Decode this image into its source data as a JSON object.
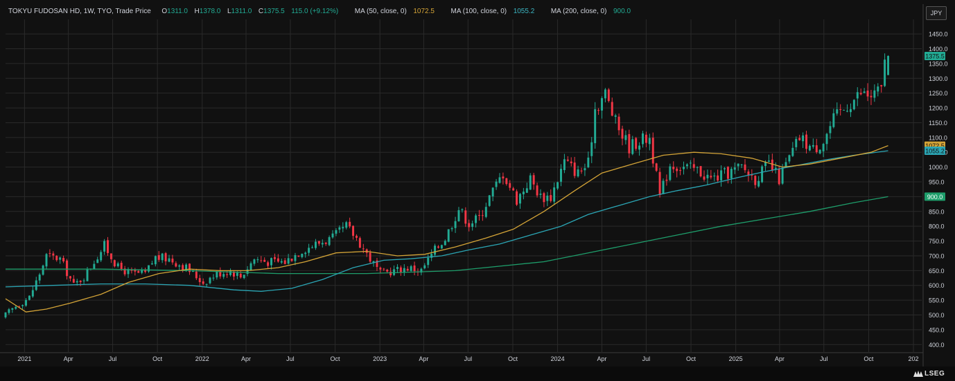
{
  "legend": {
    "title": "TOKYU FUDOSAN HD, 1W, TYO, Trade Price",
    "o_label": "O",
    "o_value": "1311.0",
    "h_label": "H",
    "h_value": "1378.0",
    "l_label": "L",
    "l_value": "1311.0",
    "c_label": "C",
    "c_value": "1375.5",
    "change": "115.0 (+9.12%)",
    "ma50_label": "MA (50, close, 0)",
    "ma50_value": "1072.5",
    "ma100_label": "MA (100, close, 0)",
    "ma100_value": "1055.2",
    "ma200_label": "MA (200, close, 0)",
    "ma200_value": "900.0"
  },
  "currency": "JPY",
  "brand": "LSEG",
  "colors": {
    "background": "#111111",
    "grid": "#2a2a2a",
    "up": "#22ab94",
    "down": "#f23645",
    "ma50": "#d4a437",
    "ma100": "#2ba6b5",
    "ma200": "#1e9e6b",
    "axis_text": "#d1d4dc"
  },
  "chart_data": {
    "type": "candlestick",
    "y_ticks": [
      400,
      450,
      500,
      550,
      600,
      650,
      700,
      750,
      800,
      850,
      900,
      950,
      1000,
      1050,
      1100,
      1150,
      1200,
      1250,
      1300,
      1350,
      1400,
      1450
    ],
    "y_tick_labels": [
      "400.0",
      "450.0",
      "500.0",
      "550.0",
      "600.0",
      "650.0",
      "700.0",
      "750.0",
      "800.0",
      "850.0",
      "900.0",
      "950.0",
      "1000.0",
      "1050.0",
      "1100.0",
      "1150.0",
      "1200.0",
      "1250.0",
      "1300.0",
      "1350.0",
      "1400.0",
      "1450.0"
    ],
    "ylim": [
      375,
      1490
    ],
    "x_ticks": [
      {
        "label": "2021",
        "date": "2021-01-01"
      },
      {
        "label": "Apr",
        "date": "2021-04-01"
      },
      {
        "label": "Jul",
        "date": "2021-07-01"
      },
      {
        "label": "Oct",
        "date": "2021-10-01"
      },
      {
        "label": "2022",
        "date": "2022-01-01"
      },
      {
        "label": "Apr",
        "date": "2022-04-01"
      },
      {
        "label": "Jul",
        "date": "2022-07-01"
      },
      {
        "label": "Oct",
        "date": "2022-10-01"
      },
      {
        "label": "2023",
        "date": "2023-01-01"
      },
      {
        "label": "Apr",
        "date": "2023-04-01"
      },
      {
        "label": "Jul",
        "date": "2023-07-01"
      },
      {
        "label": "Oct",
        "date": "2023-10-01"
      },
      {
        "label": "2024",
        "date": "2024-01-01"
      },
      {
        "label": "Apr",
        "date": "2024-04-01"
      },
      {
        "label": "Jul",
        "date": "2024-07-01"
      },
      {
        "label": "Oct",
        "date": "2024-10-01"
      },
      {
        "label": "2025",
        "date": "2025-01-01"
      },
      {
        "label": "Apr",
        "date": "2025-04-01"
      },
      {
        "label": "Jul",
        "date": "2025-07-01"
      },
      {
        "label": "Oct",
        "date": "2025-10-01"
      },
      {
        "label": "202",
        "date": "2026-01-01"
      }
    ],
    "xlim": [
      "2020-11-23",
      "2026-01-18"
    ],
    "price_keypoints": [
      [
        "2020-11-23",
        490
      ],
      [
        "2020-12-21",
        530
      ],
      [
        "2021-01-18",
        560
      ],
      [
        "2021-02-08",
        640
      ],
      [
        "2021-02-22",
        700
      ],
      [
        "2021-03-22",
        690
      ],
      [
        "2021-04-19",
        600
      ],
      [
        "2021-05-10",
        630
      ],
      [
        "2021-06-07",
        700
      ],
      [
        "2021-06-21",
        735
      ],
      [
        "2021-07-19",
        660
      ],
      [
        "2021-08-16",
        640
      ],
      [
        "2021-09-13",
        640
      ],
      [
        "2021-10-04",
        695
      ],
      [
        "2021-11-01",
        690
      ],
      [
        "2021-12-06",
        660
      ],
      [
        "2022-01-10",
        610
      ],
      [
        "2022-02-07",
        640
      ],
      [
        "2022-03-07",
        650
      ],
      [
        "2022-03-28",
        630
      ],
      [
        "2022-04-25",
        690
      ],
      [
        "2022-05-23",
        680
      ],
      [
        "2022-06-27",
        680
      ],
      [
        "2022-08-01",
        720
      ],
      [
        "2022-08-29",
        740
      ],
      [
        "2022-10-03",
        760
      ],
      [
        "2022-10-31",
        800
      ],
      [
        "2022-11-21",
        760
      ],
      [
        "2022-12-19",
        690
      ],
      [
        "2023-01-09",
        640
      ],
      [
        "2023-02-06",
        650
      ],
      [
        "2023-03-06",
        660
      ],
      [
        "2023-04-03",
        650
      ],
      [
        "2023-05-01",
        720
      ],
      [
        "2023-05-22",
        760
      ],
      [
        "2023-06-19",
        860
      ],
      [
        "2023-07-10",
        810
      ],
      [
        "2023-07-31",
        830
      ],
      [
        "2023-08-21",
        900
      ],
      [
        "2023-09-18",
        980
      ],
      [
        "2023-10-16",
        890
      ],
      [
        "2023-11-13",
        960
      ],
      [
        "2023-12-04",
        900
      ],
      [
        "2023-12-25",
        900
      ],
      [
        "2024-01-22",
        1020
      ],
      [
        "2024-02-19",
        980
      ],
      [
        "2024-03-11",
        1010
      ],
      [
        "2024-03-25",
        1200
      ],
      [
        "2024-04-15",
        1250
      ],
      [
        "2024-05-06",
        1150
      ],
      [
        "2024-06-03",
        1070
      ],
      [
        "2024-06-24",
        1090
      ],
      [
        "2024-07-15",
        1100
      ],
      [
        "2024-08-05",
        900
      ],
      [
        "2024-08-26",
        1010
      ],
      [
        "2024-09-23",
        1000
      ],
      [
        "2024-10-21",
        990
      ],
      [
        "2024-11-18",
        960
      ],
      [
        "2024-12-16",
        975
      ],
      [
        "2025-01-20",
        1000
      ],
      [
        "2025-02-17",
        960
      ],
      [
        "2025-03-17",
        1010
      ],
      [
        "2025-04-07",
        960
      ],
      [
        "2025-04-28",
        1030
      ],
      [
        "2025-05-19",
        1100
      ],
      [
        "2025-06-16",
        1060
      ],
      [
        "2025-07-07",
        1090
      ],
      [
        "2025-07-28",
        1160
      ],
      [
        "2025-08-25",
        1210
      ],
      [
        "2025-09-22",
        1250
      ],
      [
        "2025-10-13",
        1240
      ],
      [
        "2025-11-03",
        1260
      ],
      [
        "2025-11-10",
        1375.5
      ]
    ],
    "last_candle": {
      "date": "2025-11-10",
      "open": 1311.0,
      "high": 1378.0,
      "low": 1311.0,
      "close": 1375.5
    },
    "ma50": [
      [
        "2020-11-23",
        555
      ],
      [
        "2021-01-04",
        510
      ],
      [
        "2021-02-15",
        520
      ],
      [
        "2021-04-05",
        540
      ],
      [
        "2021-06-07",
        570
      ],
      [
        "2021-08-02",
        610
      ],
      [
        "2021-10-04",
        640
      ],
      [
        "2021-12-06",
        655
      ],
      [
        "2022-02-07",
        650
      ],
      [
        "2022-04-04",
        650
      ],
      [
        "2022-06-06",
        660
      ],
      [
        "2022-08-01",
        680
      ],
      [
        "2022-10-03",
        710
      ],
      [
        "2022-12-05",
        715
      ],
      [
        "2023-02-06",
        700
      ],
      [
        "2023-04-03",
        705
      ],
      [
        "2023-06-05",
        730
      ],
      [
        "2023-08-07",
        760
      ],
      [
        "2023-10-02",
        790
      ],
      [
        "2023-12-04",
        850
      ],
      [
        "2024-02-05",
        920
      ],
      [
        "2024-04-01",
        980
      ],
      [
        "2024-06-03",
        1010
      ],
      [
        "2024-08-05",
        1040
      ],
      [
        "2024-10-07",
        1050
      ],
      [
        "2024-12-02",
        1045
      ],
      [
        "2025-02-03",
        1030
      ],
      [
        "2025-04-07",
        1000
      ],
      [
        "2025-06-02",
        1010
      ],
      [
        "2025-08-04",
        1030
      ],
      [
        "2025-10-06",
        1050
      ],
      [
        "2025-11-10",
        1072.5
      ]
    ],
    "ma100": [
      [
        "2020-11-23",
        595
      ],
      [
        "2021-03-01",
        600
      ],
      [
        "2021-06-07",
        605
      ],
      [
        "2021-09-06",
        605
      ],
      [
        "2021-12-06",
        600
      ],
      [
        "2022-03-07",
        585
      ],
      [
        "2022-05-02",
        580
      ],
      [
        "2022-07-04",
        590
      ],
      [
        "2022-09-05",
        620
      ],
      [
        "2022-11-07",
        660
      ],
      [
        "2023-01-09",
        685
      ],
      [
        "2023-03-06",
        690
      ],
      [
        "2023-05-08",
        700
      ],
      [
        "2023-07-03",
        720
      ],
      [
        "2023-09-04",
        740
      ],
      [
        "2023-11-06",
        770
      ],
      [
        "2024-01-08",
        800
      ],
      [
        "2024-03-04",
        840
      ],
      [
        "2024-05-06",
        870
      ],
      [
        "2024-07-08",
        900
      ],
      [
        "2024-09-02",
        920
      ],
      [
        "2024-11-04",
        940
      ],
      [
        "2025-01-06",
        965
      ],
      [
        "2025-03-03",
        985
      ],
      [
        "2025-05-05",
        1005
      ],
      [
        "2025-07-07",
        1025
      ],
      [
        "2025-09-01",
        1040
      ],
      [
        "2025-11-10",
        1055.2
      ]
    ],
    "ma200": [
      [
        "2020-11-23",
        655
      ],
      [
        "2021-06-07",
        655
      ],
      [
        "2021-12-06",
        650
      ],
      [
        "2022-06-06",
        640
      ],
      [
        "2022-12-05",
        640
      ],
      [
        "2023-06-05",
        650
      ],
      [
        "2023-12-04",
        680
      ],
      [
        "2024-03-04",
        710
      ],
      [
        "2024-06-03",
        740
      ],
      [
        "2024-09-02",
        770
      ],
      [
        "2024-12-02",
        800
      ],
      [
        "2025-03-03",
        825
      ],
      [
        "2025-06-02",
        850
      ],
      [
        "2025-09-01",
        880
      ],
      [
        "2025-11-10",
        900.0
      ]
    ],
    "last_labels": [
      {
        "value": 1375.5,
        "text": "1375.5",
        "color": "#22ab94",
        "text_color": "#111111"
      },
      {
        "value": 1072.5,
        "text": "1072.5",
        "color": "#d4a437",
        "text_color": "#111111"
      },
      {
        "value": 1055.2,
        "text": "1055.2",
        "color": "#2ba6b5",
        "text_color": "#111111"
      },
      {
        "value": 900.0,
        "text": "900.0",
        "color": "#1e9e6b",
        "text_color": "#ffffff"
      }
    ]
  }
}
